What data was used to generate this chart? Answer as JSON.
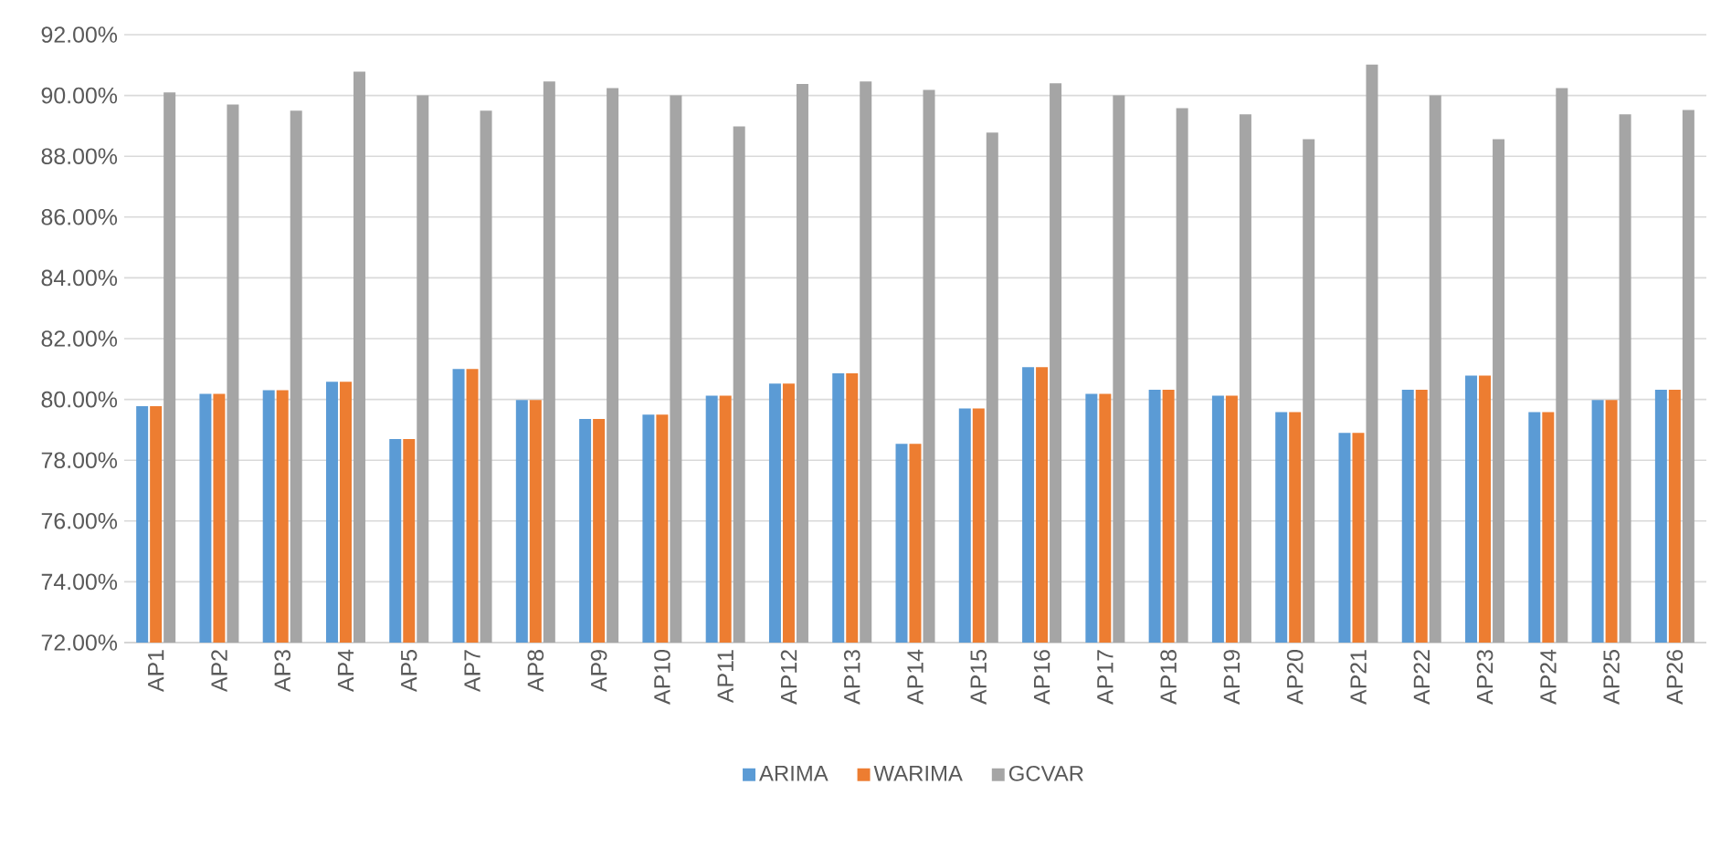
{
  "chart_data": {
    "type": "bar",
    "categories": [
      "AP1",
      "AP2",
      "AP3",
      "AP4",
      "AP5",
      "AP7",
      "AP8",
      "AP9",
      "AP10",
      "AP11",
      "AP12",
      "AP13",
      "AP14",
      "AP15",
      "AP16",
      "AP17",
      "AP18",
      "AP19",
      "AP20",
      "AP21",
      "AP22",
      "AP23",
      "AP24",
      "AP25",
      "AP26"
    ],
    "series": [
      {
        "name": "ARIMA",
        "color": "#5b9bd5",
        "values": [
          79.78,
          80.18,
          80.3,
          80.58,
          78.7,
          81.0,
          79.98,
          79.36,
          79.5,
          80.12,
          80.52,
          80.86,
          78.54,
          79.7,
          81.06,
          80.18,
          80.32,
          80.12,
          79.58,
          78.9,
          80.32,
          80.78,
          79.58,
          79.98,
          80.32
        ]
      },
      {
        "name": "WARIMA",
        "color": "#ed7d31",
        "values": [
          79.78,
          80.18,
          80.3,
          80.58,
          78.7,
          81.0,
          79.98,
          79.36,
          79.5,
          80.12,
          80.52,
          80.86,
          78.54,
          79.7,
          81.06,
          80.18,
          80.32,
          80.12,
          79.58,
          78.9,
          80.32,
          80.78,
          79.58,
          79.98,
          80.32
        ]
      },
      {
        "name": "GCVAR",
        "color": "#a5a5a5",
        "values": [
          90.1,
          89.7,
          89.5,
          90.78,
          90.0,
          89.5,
          90.46,
          90.24,
          90.0,
          88.98,
          90.38,
          90.46,
          90.18,
          88.78,
          90.4,
          90.0,
          89.58,
          89.38,
          88.56,
          91.02,
          90.0,
          88.56,
          90.24,
          89.38,
          89.52
        ]
      }
    ],
    "ylim": [
      72,
      92
    ],
    "yticks": [
      {
        "value": 72,
        "label": "72.00%"
      },
      {
        "value": 74,
        "label": "74.00%"
      },
      {
        "value": 76,
        "label": "76.00%"
      },
      {
        "value": 78,
        "label": "78.00%"
      },
      {
        "value": 80,
        "label": "80.00%"
      },
      {
        "value": 82,
        "label": "82.00%"
      },
      {
        "value": 84,
        "label": "84.00%"
      },
      {
        "value": 86,
        "label": "86.00%"
      },
      {
        "value": 88,
        "label": "88.00%"
      },
      {
        "value": 90,
        "label": "90.00%"
      },
      {
        "value": 92,
        "label": "92.00%"
      }
    ],
    "grid": "y",
    "legend": "bottom"
  }
}
